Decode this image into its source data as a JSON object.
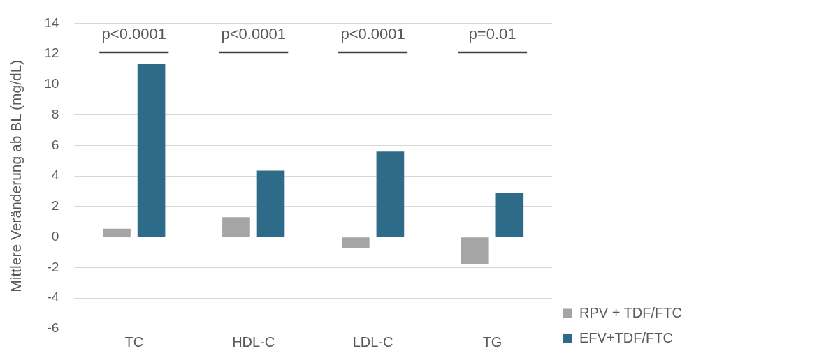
{
  "chart_data": {
    "type": "bar",
    "categories": [
      "TC",
      "HDL-C",
      "LDL-C",
      "TG"
    ],
    "ylabel": "Mittlere Veränderung ab BL (mg/dL)",
    "series": [
      {
        "name": "RPV + TDF/FTC",
        "color": "#a5a5a5",
        "values": [
          0.55,
          1.3,
          -0.7,
          -1.8
        ]
      },
      {
        "name": "EFV+TDF/FTC",
        "color": "#2e6b88",
        "values": [
          11.35,
          4.35,
          5.6,
          2.9
        ]
      }
    ],
    "ylim": [
      -6,
      14
    ],
    "yticks": [
      -6,
      -4,
      -2,
      0,
      2,
      4,
      6,
      8,
      10,
      12,
      14
    ],
    "grid": "y",
    "legend": "bottom right",
    "annotations": [
      "p<0.0001",
      "p<0.0001",
      "p<0.0001",
      "p=0.01"
    ]
  }
}
